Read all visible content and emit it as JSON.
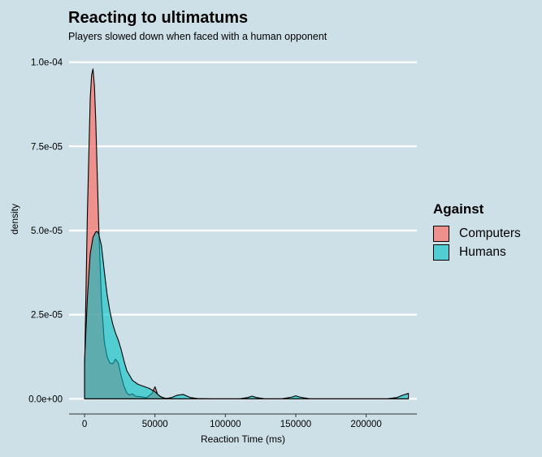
{
  "chart_data": {
    "type": "area",
    "title": "Reacting to ultimatums",
    "subtitle": "Players slowed down when faced with a human opponent",
    "xlabel": "Reaction Time (ms)",
    "ylabel": "density",
    "xlim": [
      -11000,
      236000
    ],
    "ylim": [
      -4.5e-06,
      0.000104
    ],
    "x_ticks": [
      0,
      50000,
      100000,
      150000,
      200000
    ],
    "x_tick_labels": [
      "0",
      "50000",
      "100000",
      "150000",
      "200000"
    ],
    "y_ticks": [
      0,
      2.5e-05,
      5e-05,
      7.5e-05,
      0.0001
    ],
    "y_tick_labels": [
      "0.0e+00",
      "2.5e-05",
      "5.0e-05",
      "7.5e-05",
      "1.0e-04"
    ],
    "grid": "horizontal major",
    "legend": {
      "title": "Against",
      "position": "right"
    },
    "series": [
      {
        "name": "Computers",
        "color": "#f8766d",
        "x": [
          0,
          2000,
          4000,
          5000,
          6000,
          7000,
          8000,
          10000,
          12000,
          14000,
          16000,
          18000,
          20000,
          22000,
          24000,
          26000,
          28000,
          30000,
          32000,
          34000,
          36000,
          40000,
          44000,
          48000,
          50000,
          52000,
          56000,
          60000,
          230000
        ],
        "values": [
          8.5e-06,
          5.5e-05,
          8.9e-05,
          9.62e-05,
          9.8e-05,
          9.3e-05,
          8.2e-05,
          5.2e-05,
          2.9e-05,
          1.7e-05,
          1.25e-05,
          1.06e-05,
          1.04e-05,
          1.18e-05,
          1.06e-05,
          6.8e-06,
          3.7e-06,
          1.8e-06,
          1.1e-06,
          1.5e-06,
          8e-07,
          6e-07,
          3e-07,
          1.7e-06,
          3.6e-06,
          1.2e-06,
          2e-07,
          0,
          0
        ]
      },
      {
        "name": "Humans",
        "color": "#00bfc4",
        "x": [
          0,
          2000,
          4000,
          6000,
          8000,
          9000,
          10000,
          12000,
          14000,
          16000,
          18000,
          20000,
          22000,
          24000,
          26000,
          28000,
          30000,
          34000,
          38000,
          42000,
          46000,
          50000,
          54000,
          58000,
          62000,
          66000,
          70000,
          75000,
          80000,
          90000,
          110000,
          116000,
          119000,
          122000,
          128000,
          140000,
          147000,
          150000,
          153000,
          160000,
          180000,
          200000,
          215000,
          222000,
          226000,
          230000
        ],
        "values": [
          1.1e-05,
          3e-05,
          4.3e-05,
          4.8e-05,
          4.96e-05,
          4.97e-05,
          4.9e-05,
          4.55e-05,
          3.8e-05,
          3.1e-05,
          2.6e-05,
          2.22e-05,
          1.95e-05,
          1.74e-05,
          1.46e-05,
          1.13e-05,
          8.4e-06,
          5.5e-06,
          4.3e-06,
          3.7e-06,
          3.1e-06,
          2.1e-06,
          6e-07,
          1e-07,
          4e-07,
          1.1e-06,
          1.3e-06,
          4e-07,
          1e-07,
          0,
          0,
          4e-07,
          8e-07,
          4e-07,
          0,
          0,
          5e-07,
          9e-07,
          5e-07,
          0,
          0,
          0,
          0,
          4e-07,
          1.1e-06,
          1.6e-06
        ]
      }
    ]
  }
}
